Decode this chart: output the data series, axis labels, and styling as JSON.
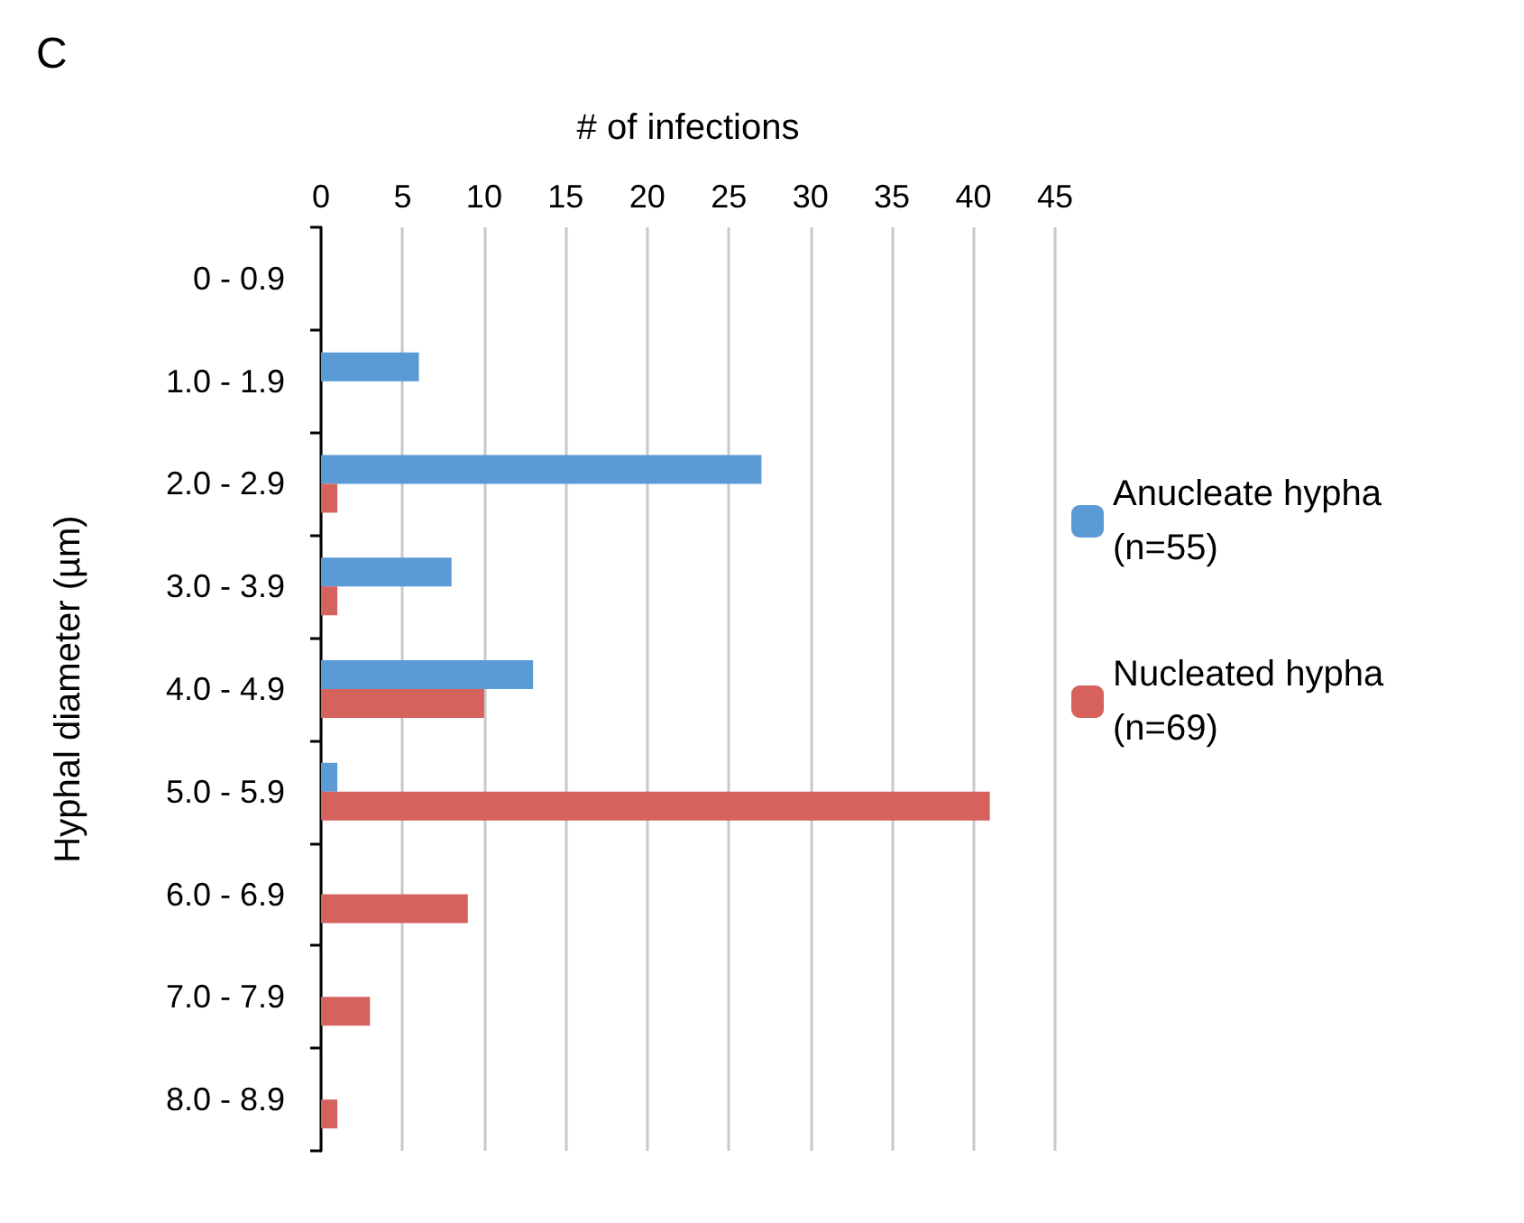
{
  "chart_data": {
    "type": "bar",
    "orientation": "horizontal",
    "xlabel": "# of infections",
    "ylabel": "Hyphal diameter (µm)",
    "annotations": [
      "C"
    ],
    "categories": [
      "0 - 0.9",
      "1.0 - 1.9",
      "2.0 - 2.9",
      "3.0 - 3.9",
      "4.0 - 4.9",
      "5.0 - 5.9",
      "6.0 - 6.9",
      "7.0 - 7.9",
      "8.0 - 8.9"
    ],
    "series": [
      {
        "name": "Anucleate hypha (n=55)",
        "color": "#5b9bd5",
        "values": [
          0,
          6,
          27,
          8,
          13,
          1,
          0,
          0,
          0
        ]
      },
      {
        "name": "Nucleated hypha (n=69)",
        "color": "#d6625d",
        "values": [
          0,
          0,
          1,
          1,
          10,
          41,
          9,
          3,
          1
        ]
      }
    ],
    "xlim": [
      0,
      45
    ],
    "xticks": [
      0,
      5,
      10,
      15,
      20,
      25,
      30,
      35,
      40,
      45
    ],
    "grid": "x",
    "legend": "right"
  }
}
